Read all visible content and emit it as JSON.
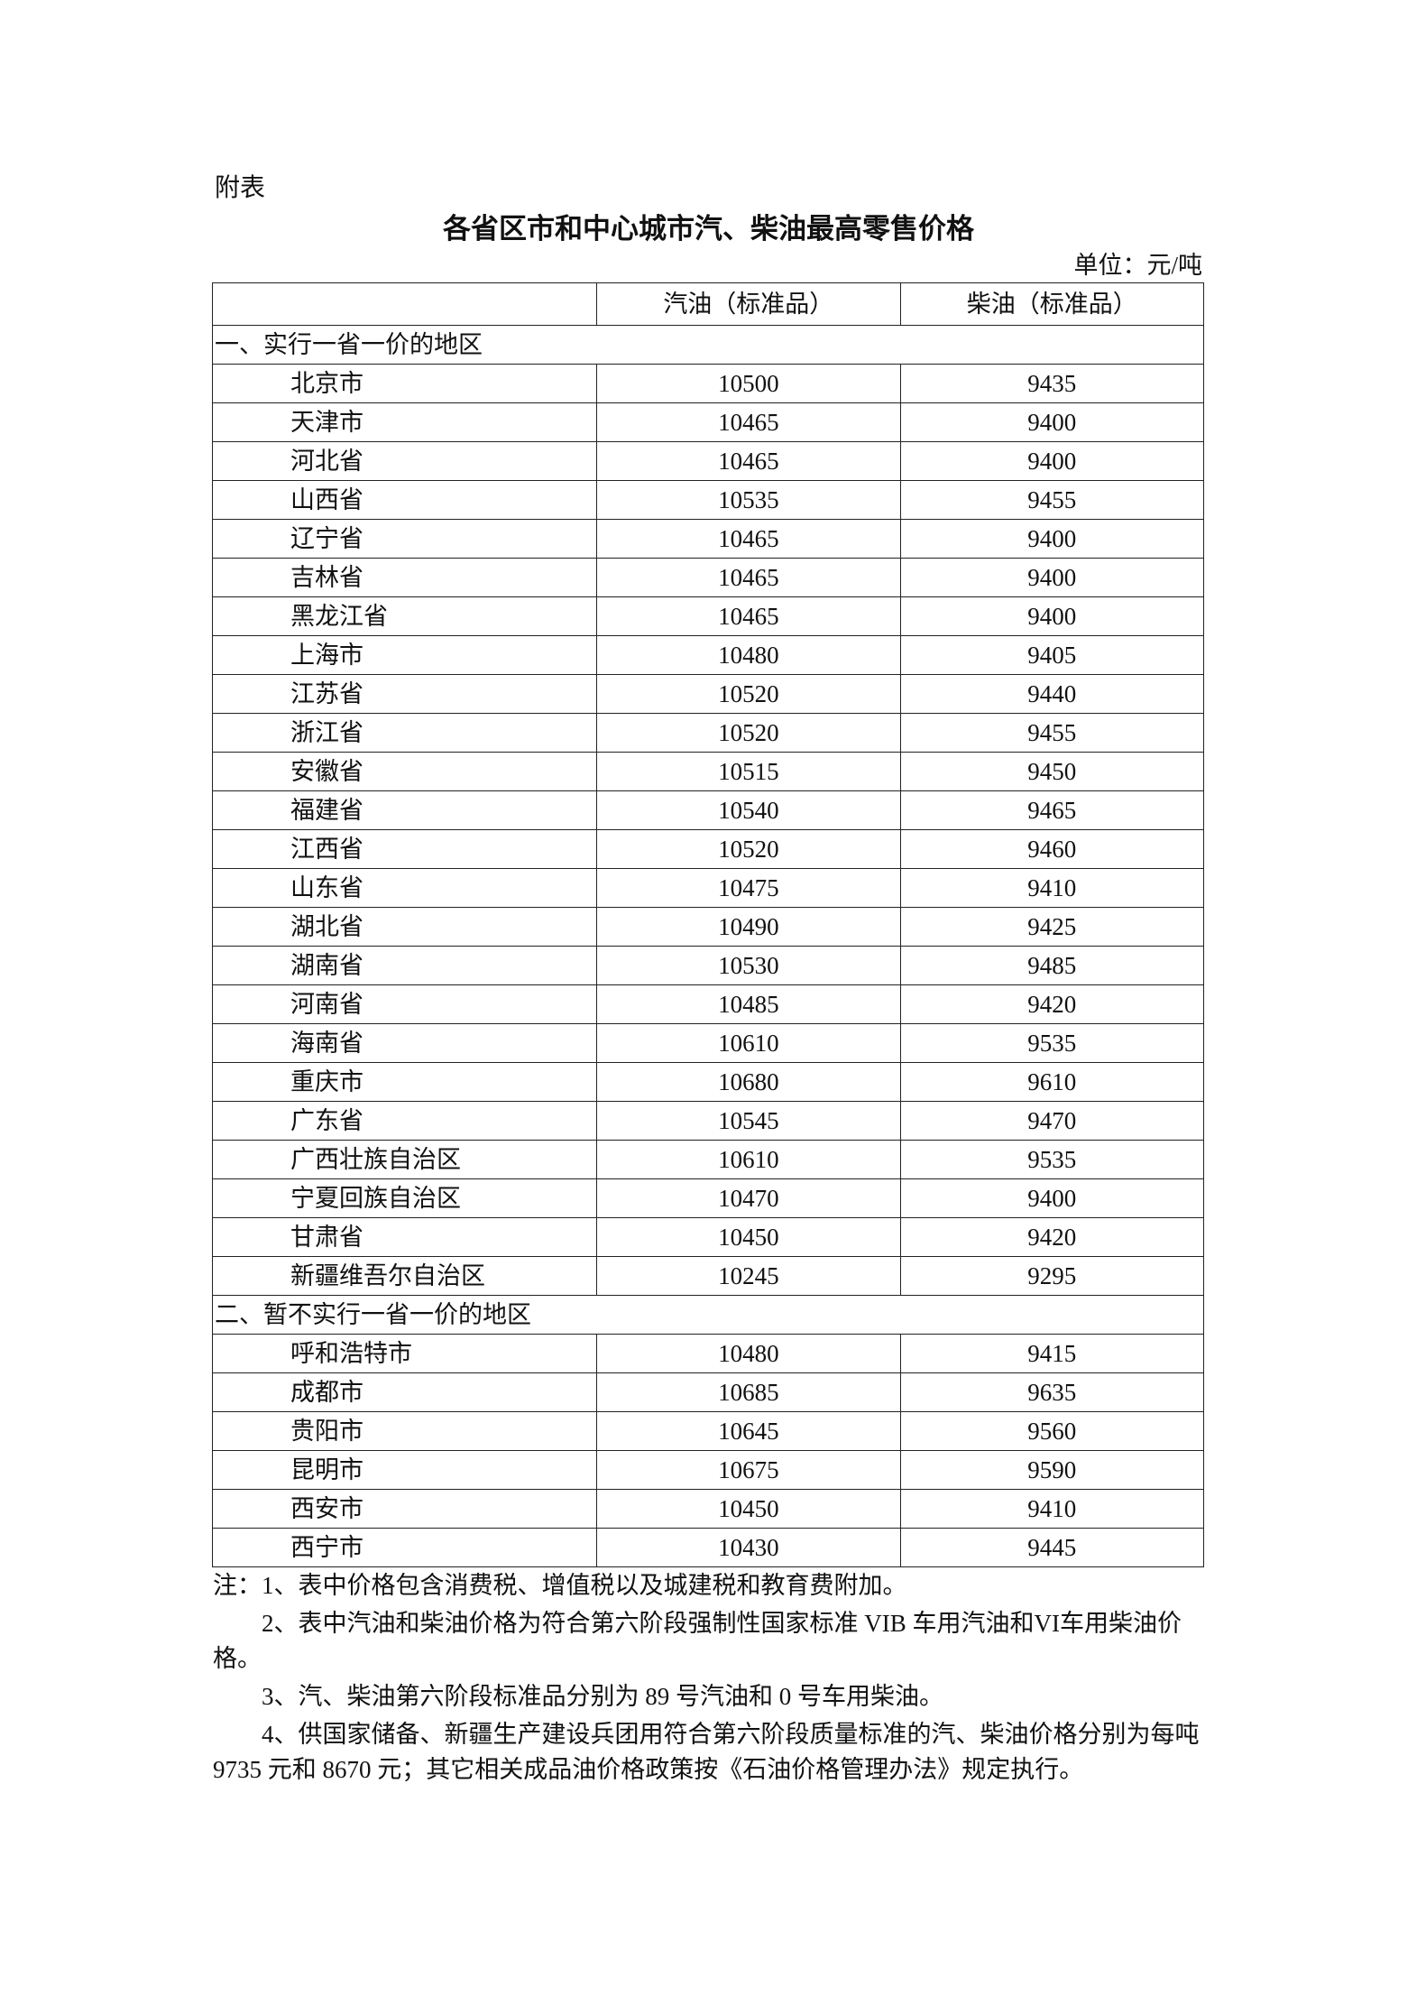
{
  "attachment_label": "附表",
  "title": "各省区市和中心城市汽、柴油最高零售价格",
  "unit": "单位：元/吨",
  "table": {
    "headers": [
      "",
      "汽油（标准品）",
      "柴油（标准品）"
    ],
    "sections": [
      {
        "label": "一、实行一省一价的地区",
        "rows": [
          [
            "北京市",
            "10500",
            "9435"
          ],
          [
            "天津市",
            "10465",
            "9400"
          ],
          [
            "河北省",
            "10465",
            "9400"
          ],
          [
            "山西省",
            "10535",
            "9455"
          ],
          [
            "辽宁省",
            "10465",
            "9400"
          ],
          [
            "吉林省",
            "10465",
            "9400"
          ],
          [
            "黑龙江省",
            "10465",
            "9400"
          ],
          [
            "上海市",
            "10480",
            "9405"
          ],
          [
            "江苏省",
            "10520",
            "9440"
          ],
          [
            "浙江省",
            "10520",
            "9455"
          ],
          [
            "安徽省",
            "10515",
            "9450"
          ],
          [
            "福建省",
            "10540",
            "9465"
          ],
          [
            "江西省",
            "10520",
            "9460"
          ],
          [
            "山东省",
            "10475",
            "9410"
          ],
          [
            "湖北省",
            "10490",
            "9425"
          ],
          [
            "湖南省",
            "10530",
            "9485"
          ],
          [
            "河南省",
            "10485",
            "9420"
          ],
          [
            "海南省",
            "10610",
            "9535"
          ],
          [
            "重庆市",
            "10680",
            "9610"
          ],
          [
            "广东省",
            "10545",
            "9470"
          ],
          [
            "广西壮族自治区",
            "10610",
            "9535"
          ],
          [
            "宁夏回族自治区",
            "10470",
            "9400"
          ],
          [
            "甘肃省",
            "10450",
            "9420"
          ],
          [
            "新疆维吾尔自治区",
            "10245",
            "9295"
          ]
        ]
      },
      {
        "label": "二、暂不实行一省一价的地区",
        "rows": [
          [
            "呼和浩特市",
            "10480",
            "9415"
          ],
          [
            "成都市",
            "10685",
            "9635"
          ],
          [
            "贵阳市",
            "10645",
            "9560"
          ],
          [
            "昆明市",
            "10675",
            "9590"
          ],
          [
            "西安市",
            "10450",
            "9410"
          ],
          [
            "西宁市",
            "10430",
            "9445"
          ]
        ]
      }
    ]
  },
  "notes": [
    "注：1、表中价格包含消费税、增值税以及城建税和教育费附加。",
    "2、表中汽油和柴油价格为符合第六阶段强制性国家标准 VIB 车用汽油和VI车用柴油价格。",
    "3、汽、柴油第六阶段标准品分别为 89 号汽油和 0 号车用柴油。",
    "4、供国家储备、新疆生产建设兵团用符合第六阶段质量标准的汽、柴油价格分别为每吨 9735 元和 8670 元；其它相关成品油价格政策按《石油价格管理办法》规定执行。"
  ]
}
